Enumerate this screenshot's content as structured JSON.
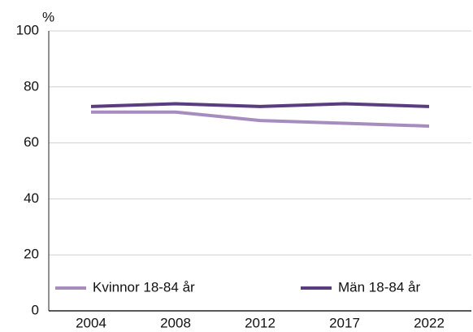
{
  "chart_data": {
    "type": "line",
    "y_label": "%",
    "categories": [
      "2004",
      "2008",
      "2012",
      "2017",
      "2022"
    ],
    "series": [
      {
        "name": "Kvinnor 18-84 år",
        "color": "#a68cbf",
        "values": [
          71,
          71,
          68,
          67,
          66
        ]
      },
      {
        "name": "Män 18-84 år",
        "color": "#5a3d80",
        "values": [
          73,
          74,
          73,
          74,
          73
        ]
      }
    ],
    "ylim": [
      0,
      100
    ],
    "yticks": [
      0,
      20,
      40,
      60,
      80,
      100
    ],
    "grid": true,
    "legend": "bottom"
  }
}
